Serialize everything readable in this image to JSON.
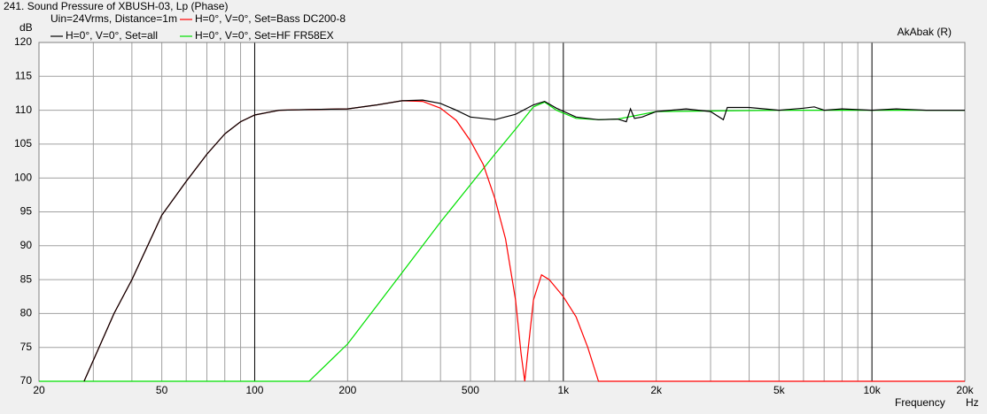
{
  "chart_data": {
    "type": "line",
    "title": "241. Sound Pressure of XBUSH-03, Lp (Phase)",
    "subtitle": "Uin=24Vrms, Distance=1m",
    "annotation": "AkAbak (R)",
    "y_label": "dB",
    "x_label": "Frequency",
    "x_unit": "Hz",
    "xlog": true,
    "grid": true,
    "xlim": [
      20,
      20000
    ],
    "ylim": [
      70,
      120
    ],
    "yticks": [
      70,
      75,
      80,
      85,
      90,
      95,
      100,
      105,
      110,
      115,
      120
    ],
    "xticks": [
      20,
      50,
      100,
      200,
      500,
      {
        "value": 1000,
        "label": "1k"
      },
      {
        "value": 2000,
        "label": "2k"
      },
      {
        "value": 5000,
        "label": "5k"
      },
      {
        "value": 10000,
        "label": "10k"
      },
      {
        "value": 20000,
        "label": "20k"
      }
    ],
    "x_minor_ticks": [
      30,
      40,
      60,
      70,
      80,
      90,
      300,
      400,
      600,
      700,
      800,
      900,
      3000,
      4000,
      6000,
      7000,
      8000,
      9000
    ],
    "series": [
      {
        "name": "H=0°, V=0°, Set=all",
        "color": "#000000",
        "x": [
          28,
          35,
          40,
          50,
          60,
          70,
          80,
          90,
          100,
          120,
          150,
          200,
          250,
          300,
          350,
          400,
          450,
          500,
          600,
          700,
          800,
          870,
          950,
          1100,
          1300,
          1500,
          1600,
          1650,
          1700,
          1800,
          2000,
          2500,
          3000,
          3300,
          3400,
          4000,
          5000,
          6000,
          6500,
          7000,
          8000,
          10000,
          12000,
          15000,
          20000
        ],
        "values": [
          70,
          80,
          85,
          94.5,
          99.5,
          103.5,
          106.5,
          108.3,
          109.3,
          110,
          110.1,
          110.2,
          110.8,
          111.4,
          111.5,
          111,
          110,
          109,
          108.6,
          109.4,
          110.8,
          111.3,
          110.3,
          109,
          108.6,
          108.7,
          108.3,
          110.2,
          108.8,
          109,
          109.8,
          110.2,
          109.8,
          108.6,
          110.4,
          110.4,
          110,
          110.3,
          110.5,
          110,
          110.2,
          110,
          110.2,
          110,
          110
        ]
      },
      {
        "name": "H=0°, V=0°, Set=Bass DC200-8",
        "color": "#ff0000",
        "x": [
          28,
          35,
          40,
          50,
          60,
          70,
          80,
          90,
          100,
          120,
          150,
          200,
          250,
          300,
          350,
          400,
          450,
          500,
          550,
          600,
          650,
          700,
          730,
          750,
          770,
          800,
          850,
          900,
          1000,
          1100,
          1200,
          1300,
          20000
        ],
        "values": [
          70,
          80,
          85,
          94.5,
          99.5,
          103.5,
          106.5,
          108.3,
          109.3,
          110,
          110.1,
          110.2,
          110.8,
          111.4,
          111.3,
          110.3,
          108.5,
          105.5,
          102,
          97,
          91,
          82,
          74,
          70,
          75,
          82,
          85.7,
          85,
          82.5,
          79.5,
          75,
          70,
          70
        ]
      },
      {
        "name": "H=0°, V=0°, Set=HF FR58EX",
        "color": "#00e000",
        "x": [
          20,
          150,
          200,
          300,
          400,
          500,
          600,
          700,
          800,
          870,
          950,
          1100,
          1300,
          1500,
          2000,
          5000,
          20000
        ],
        "values": [
          70,
          70,
          75.5,
          86,
          93.5,
          99,
          103.5,
          107.2,
          110.5,
          111.2,
          110,
          108.8,
          108.6,
          108.7,
          109.8,
          110,
          110
        ]
      }
    ]
  }
}
